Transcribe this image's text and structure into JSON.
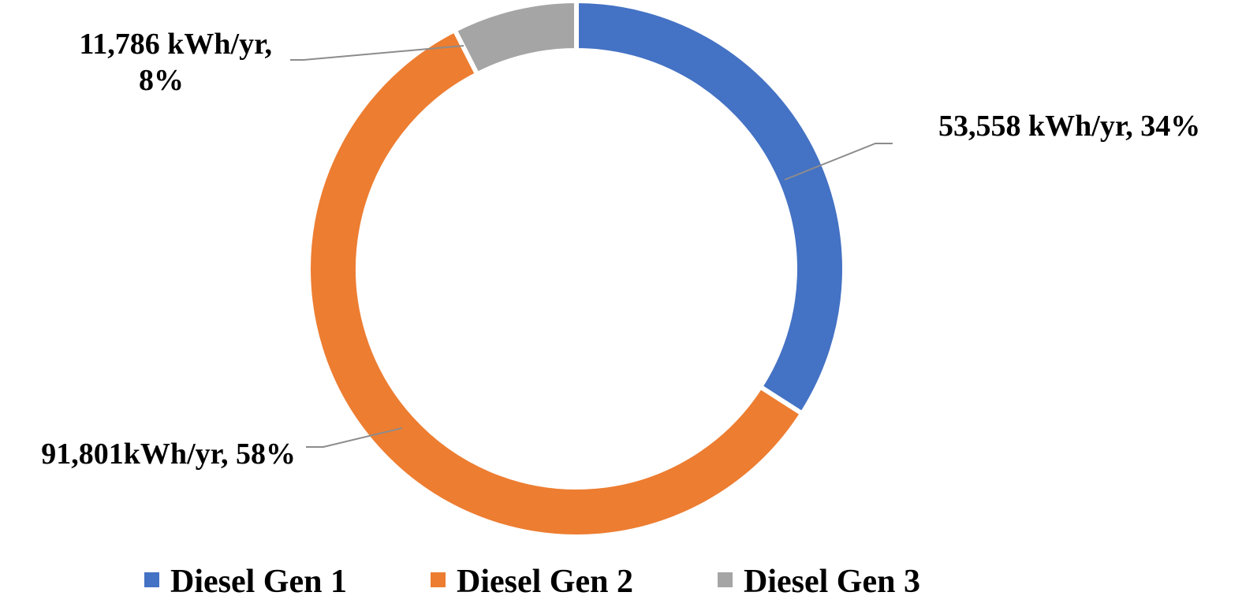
{
  "chart_data": {
    "type": "pie",
    "variant": "donut",
    "title": "",
    "series": [
      {
        "name": "Diesel Gen 1",
        "value": 53558,
        "percent": 34,
        "color": "#4472C4",
        "label": [
          "53,558 kWh/yr, 34%"
        ]
      },
      {
        "name": "Diesel Gen 2",
        "value": 91801,
        "percent": 58,
        "color": "#ED7D31",
        "label": [
          "91,801kWh/yr, 58%"
        ]
      },
      {
        "name": "Diesel Gen 3",
        "value": 11786,
        "percent": 8,
        "color": "#A5A5A5",
        "label": [
          "11,786 kWh/yr,",
          "8%"
        ]
      }
    ],
    "legend_position": "bottom"
  }
}
